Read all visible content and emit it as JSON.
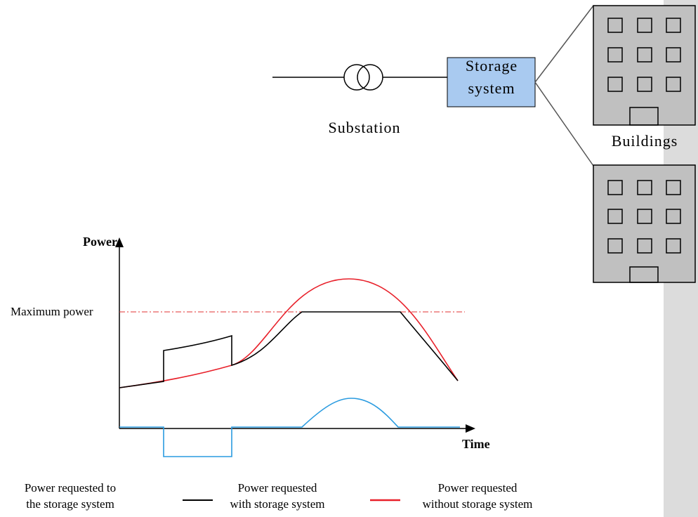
{
  "storage": {
    "lines": [
      "Storage",
      "system"
    ]
  },
  "substation": "Substation",
  "buildings": "Buildings",
  "chart": {
    "y_axis": "Power",
    "x_axis": "Time",
    "max_label": "Maximum power"
  },
  "legend": [
    {
      "lines": [
        "Power requested to",
        "the storage system"
      ]
    },
    {
      "lines": [
        "Power requested",
        "with storage system"
      ]
    },
    {
      "lines": [
        "Power requested",
        "without storage system"
      ]
    }
  ]
}
